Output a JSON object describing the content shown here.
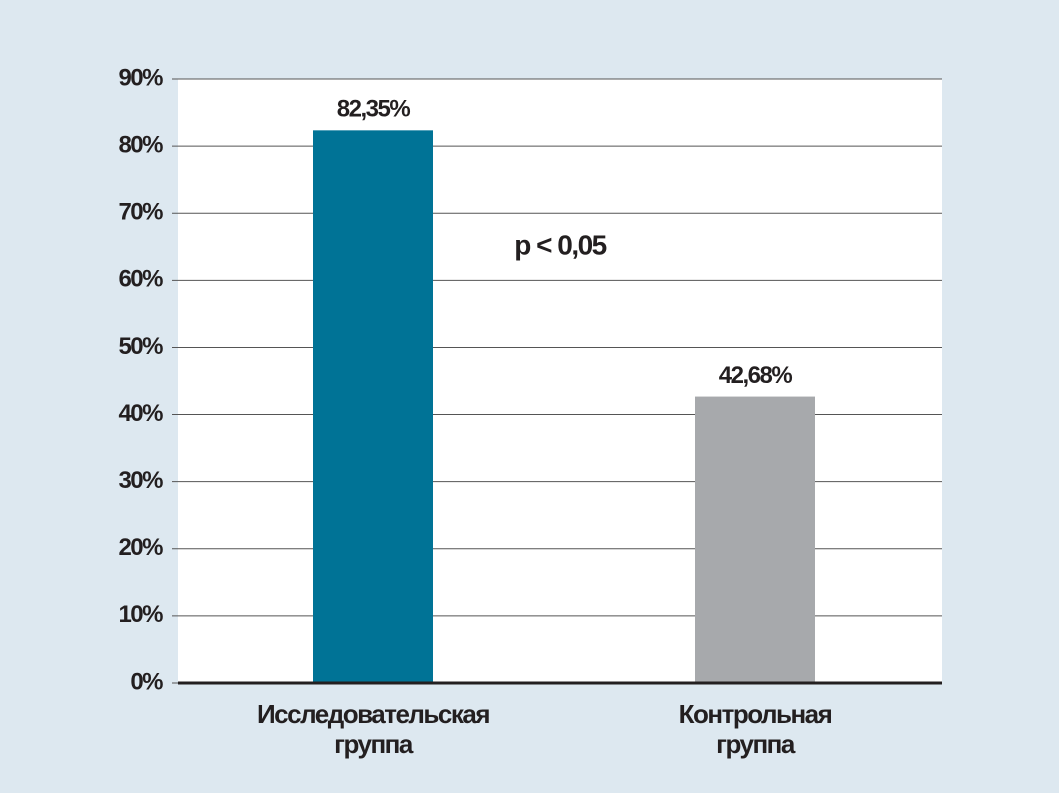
{
  "chart_data": {
    "type": "bar",
    "categories": [
      "Исследовательская группа",
      "Контрольная группа"
    ],
    "values": [
      82.35,
      42.68
    ],
    "value_labels": [
      "82,35%",
      "42,68%"
    ],
    "colors": [
      "#007396",
      "#a7a9ac"
    ],
    "ylim": [
      0,
      90
    ],
    "yticks": [
      {
        "value": 0,
        "label": "0%"
      },
      {
        "value": 10,
        "label": "10%"
      },
      {
        "value": 20,
        "label": "20%"
      },
      {
        "value": 30,
        "label": "30%"
      },
      {
        "value": 40,
        "label": "40%"
      },
      {
        "value": 50,
        "label": "50%"
      },
      {
        "value": 60,
        "label": "60%"
      },
      {
        "value": 70,
        "label": "70%"
      },
      {
        "value": 80,
        "label": "80%"
      },
      {
        "value": 90,
        "label": "90%"
      }
    ],
    "grid": true,
    "annotation": "p < 0,05"
  }
}
